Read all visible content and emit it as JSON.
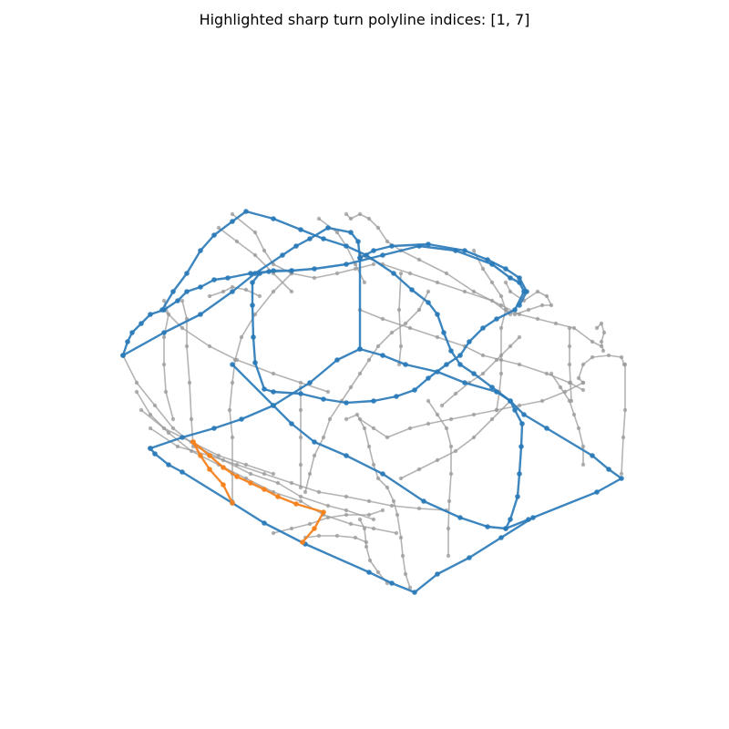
{
  "title": "Highlighted sharp turn polyline indices: [1, 7]",
  "colors": {
    "background": "#ffffff",
    "context": "#999999",
    "main": "#2b7bb9",
    "highlight": "#f5821f"
  },
  "diagram": {
    "type": "3d wireframe polylines",
    "highlighted_indices": [
      1,
      7
    ],
    "polyline_groups": [
      {
        "role": "context",
        "color_key": "context"
      },
      {
        "role": "main",
        "color_key": "main"
      },
      {
        "role": "highlighted-sharp-turn",
        "color_key": "highlight"
      }
    ]
  }
}
